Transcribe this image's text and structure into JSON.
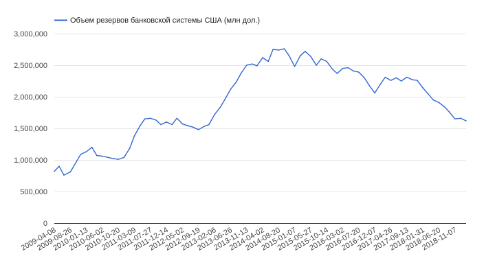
{
  "chart_data": {
    "type": "line",
    "title": "",
    "xlabel": "",
    "ylabel": "",
    "ylim": [
      0,
      3000000
    ],
    "y_ticks": [
      {
        "value": 0,
        "label": "0"
      },
      {
        "value": 500000,
        "label": "500,000"
      },
      {
        "value": 1000000,
        "label": "1,000,000"
      },
      {
        "value": 1500000,
        "label": "1,500,000"
      },
      {
        "value": 2000000,
        "label": "2,000,000"
      },
      {
        "value": 2500000,
        "label": "2,500,000"
      },
      {
        "value": 3000000,
        "label": "3,000,000"
      }
    ],
    "x_ticks": [
      "2009-04-08",
      "2009-08-26",
      "2010-01-13",
      "2010-06-02",
      "2010-10-20",
      "2011-03-09",
      "2011-07-27",
      "2011-12-14",
      "2012-05-02",
      "2012-09-19",
      "2013-02-06",
      "2013-06-26",
      "2013-11-13",
      "2014-04-02",
      "2014-08-20",
      "2015-01-07",
      "2015-05-27",
      "2015-10-14",
      "2016-03-02",
      "2016-07-20",
      "2016-12-07",
      "2017-04-26",
      "2017-09-13",
      "2018-01-31",
      "2018-06-20",
      "2018-11-07"
    ],
    "grid": true,
    "legend_position": "top-left",
    "colors": {
      "series": "#3366cc",
      "grid": "#e6e6e6",
      "axis": "#333333"
    },
    "series": [
      {
        "name": "Объем резервов банковской системы США (млн дол.)",
        "x": [
          "2009-04-08",
          "2009-05-20",
          "2009-07-01",
          "2009-08-26",
          "2009-10-14",
          "2009-11-25",
          "2010-01-13",
          "2010-03-03",
          "2010-04-14",
          "2010-06-02",
          "2010-07-21",
          "2010-09-08",
          "2010-10-20",
          "2010-12-08",
          "2011-01-26",
          "2011-03-09",
          "2011-04-27",
          "2011-06-08",
          "2011-07-27",
          "2011-09-14",
          "2011-10-26",
          "2011-12-14",
          "2012-02-01",
          "2012-03-14",
          "2012-05-02",
          "2012-06-20",
          "2012-08-01",
          "2012-09-19",
          "2012-11-07",
          "2012-12-19",
          "2013-02-06",
          "2013-03-27",
          "2013-05-08",
          "2013-06-26",
          "2013-08-14",
          "2013-09-25",
          "2013-11-13",
          "2014-01-01",
          "2014-02-12",
          "2014-04-02",
          "2014-05-21",
          "2014-07-02",
          "2014-08-20",
          "2014-10-08",
          "2014-11-19",
          "2015-01-07",
          "2015-02-25",
          "2015-04-08",
          "2015-05-27",
          "2015-07-15",
          "2015-08-26",
          "2015-10-14",
          "2015-12-02",
          "2016-01-13",
          "2016-03-02",
          "2016-04-20",
          "2016-06-01",
          "2016-07-20",
          "2016-09-07",
          "2016-10-19",
          "2016-12-07",
          "2017-01-25",
          "2017-03-08",
          "2017-04-26",
          "2017-06-14",
          "2017-07-26",
          "2017-09-13",
          "2017-11-01",
          "2017-12-13",
          "2018-01-31",
          "2018-03-21",
          "2018-05-02",
          "2018-06-20",
          "2018-08-08",
          "2018-09-19",
          "2018-11-07",
          "2018-12-26",
          "2019-02-13"
        ],
        "values": [
          820000,
          900000,
          760000,
          810000,
          960000,
          1090000,
          1130000,
          1200000,
          1070000,
          1060000,
          1040000,
          1020000,
          1010000,
          1040000,
          1180000,
          1380000,
          1540000,
          1650000,
          1660000,
          1630000,
          1560000,
          1600000,
          1560000,
          1660000,
          1570000,
          1540000,
          1520000,
          1480000,
          1530000,
          1560000,
          1720000,
          1830000,
          1960000,
          2120000,
          2230000,
          2370000,
          2500000,
          2520000,
          2490000,
          2620000,
          2560000,
          2750000,
          2740000,
          2760000,
          2650000,
          2480000,
          2650000,
          2720000,
          2640000,
          2500000,
          2600000,
          2560000,
          2440000,
          2370000,
          2450000,
          2460000,
          2410000,
          2390000,
          2300000,
          2180000,
          2060000,
          2200000,
          2310000,
          2260000,
          2300000,
          2250000,
          2310000,
          2270000,
          2260000,
          2140000,
          2040000,
          1950000,
          1910000,
          1840000,
          1760000,
          1650000,
          1660000,
          1620000
        ]
      }
    ]
  }
}
